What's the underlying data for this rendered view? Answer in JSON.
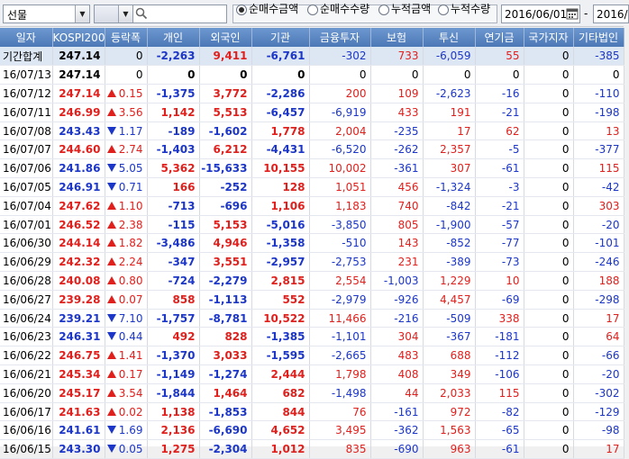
{
  "toolbar": {
    "market_select": "선물",
    "mode_options": [
      {
        "label": "순매수금액",
        "selected": true
      },
      {
        "label": "순매수수량",
        "selected": false
      },
      {
        "label": "누적금액",
        "selected": false
      },
      {
        "label": "누적수량",
        "selected": false
      }
    ],
    "start_date": "2016/06/01",
    "date_separator": "-",
    "end_date": "2016/"
  },
  "columns": [
    "일자",
    "KOSPI200",
    "등락폭",
    "개인",
    "외국인",
    "기관",
    "금융투자",
    "보험",
    "투신",
    "연기금",
    "국가지자",
    "기타법인"
  ],
  "colors": {
    "up": "#e0201d",
    "down": "#1c36c8",
    "header": "#4c78b6",
    "total_row": "#dde6f3"
  },
  "rows": [
    {
      "date": "기간합계",
      "kospi": "247.14",
      "dir": "none",
      "chg": "0",
      "ind": "-2,263",
      "frn": "9,411",
      "inst": "-6,761",
      "fin": "-302",
      "ins": "733",
      "tru": "-6,059",
      "pen": "55",
      "gov": "0",
      "etc": "-385"
    },
    {
      "date": "16/07/13",
      "kospi": "247.14",
      "dir": "none",
      "chg": "0",
      "ind": "0",
      "frn": "0",
      "inst": "0",
      "fin": "0",
      "ins": "0",
      "tru": "0",
      "pen": "0",
      "gov": "0",
      "etc": "0"
    },
    {
      "date": "16/07/12",
      "kospi": "247.14",
      "dir": "up",
      "chg": "0.15",
      "ind": "-1,375",
      "frn": "3,772",
      "inst": "-2,286",
      "fin": "200",
      "ins": "109",
      "tru": "-2,623",
      "pen": "-16",
      "gov": "0",
      "etc": "-110"
    },
    {
      "date": "16/07/11",
      "kospi": "246.99",
      "dir": "up",
      "chg": "3.56",
      "ind": "1,142",
      "frn": "5,513",
      "inst": "-6,457",
      "fin": "-6,919",
      "ins": "433",
      "tru": "191",
      "pen": "-21",
      "gov": "0",
      "etc": "-198"
    },
    {
      "date": "16/07/08",
      "kospi": "243.43",
      "dir": "down",
      "chg": "1.17",
      "ind": "-189",
      "frn": "-1,602",
      "inst": "1,778",
      "fin": "2,004",
      "ins": "-235",
      "tru": "17",
      "pen": "62",
      "gov": "0",
      "etc": "13"
    },
    {
      "date": "16/07/07",
      "kospi": "244.60",
      "dir": "up",
      "chg": "2.74",
      "ind": "-1,403",
      "frn": "6,212",
      "inst": "-4,431",
      "fin": "-6,520",
      "ins": "-262",
      "tru": "2,357",
      "pen": "-5",
      "gov": "0",
      "etc": "-377"
    },
    {
      "date": "16/07/06",
      "kospi": "241.86",
      "dir": "down",
      "chg": "5.05",
      "ind": "5,362",
      "frn": "-15,633",
      "inst": "10,155",
      "fin": "10,002",
      "ins": "-361",
      "tru": "307",
      "pen": "-61",
      "gov": "0",
      "etc": "115"
    },
    {
      "date": "16/07/05",
      "kospi": "246.91",
      "dir": "down",
      "chg": "0.71",
      "ind": "166",
      "frn": "-252",
      "inst": "128",
      "fin": "1,051",
      "ins": "456",
      "tru": "-1,324",
      "pen": "-3",
      "gov": "0",
      "etc": "-42"
    },
    {
      "date": "16/07/04",
      "kospi": "247.62",
      "dir": "up",
      "chg": "1.10",
      "ind": "-713",
      "frn": "-696",
      "inst": "1,106",
      "fin": "1,183",
      "ins": "740",
      "tru": "-842",
      "pen": "-21",
      "gov": "0",
      "etc": "303"
    },
    {
      "date": "16/07/01",
      "kospi": "246.52",
      "dir": "up",
      "chg": "2.38",
      "ind": "-115",
      "frn": "5,153",
      "inst": "-5,016",
      "fin": "-3,850",
      "ins": "805",
      "tru": "-1,900",
      "pen": "-57",
      "gov": "0",
      "etc": "-20"
    },
    {
      "date": "16/06/30",
      "kospi": "244.14",
      "dir": "up",
      "chg": "1.82",
      "ind": "-3,486",
      "frn": "4,946",
      "inst": "-1,358",
      "fin": "-510",
      "ins": "143",
      "tru": "-852",
      "pen": "-77",
      "gov": "0",
      "etc": "-101"
    },
    {
      "date": "16/06/29",
      "kospi": "242.32",
      "dir": "up",
      "chg": "2.24",
      "ind": "-347",
      "frn": "3,551",
      "inst": "-2,957",
      "fin": "-2,753",
      "ins": "231",
      "tru": "-389",
      "pen": "-73",
      "gov": "0",
      "etc": "-246"
    },
    {
      "date": "16/06/28",
      "kospi": "240.08",
      "dir": "up",
      "chg": "0.80",
      "ind": "-724",
      "frn": "-2,279",
      "inst": "2,815",
      "fin": "2,554",
      "ins": "-1,003",
      "tru": "1,229",
      "pen": "10",
      "gov": "0",
      "etc": "188"
    },
    {
      "date": "16/06/27",
      "kospi": "239.28",
      "dir": "up",
      "chg": "0.07",
      "ind": "858",
      "frn": "-1,113",
      "inst": "552",
      "fin": "-2,979",
      "ins": "-926",
      "tru": "4,457",
      "pen": "-69",
      "gov": "0",
      "etc": "-298"
    },
    {
      "date": "16/06/24",
      "kospi": "239.21",
      "dir": "down",
      "chg": "7.10",
      "ind": "-1,757",
      "frn": "-8,781",
      "inst": "10,522",
      "fin": "11,466",
      "ins": "-216",
      "tru": "-509",
      "pen": "338",
      "gov": "0",
      "etc": "17"
    },
    {
      "date": "16/06/23",
      "kospi": "246.31",
      "dir": "down",
      "chg": "0.44",
      "ind": "492",
      "frn": "828",
      "inst": "-1,385",
      "fin": "-1,101",
      "ins": "304",
      "tru": "-367",
      "pen": "-181",
      "gov": "0",
      "etc": "64"
    },
    {
      "date": "16/06/22",
      "kospi": "246.75",
      "dir": "up",
      "chg": "1.41",
      "ind": "-1,370",
      "frn": "3,033",
      "inst": "-1,595",
      "fin": "-2,665",
      "ins": "483",
      "tru": "688",
      "pen": "-112",
      "gov": "0",
      "etc": "-66"
    },
    {
      "date": "16/06/21",
      "kospi": "245.34",
      "dir": "up",
      "chg": "0.17",
      "ind": "-1,149",
      "frn": "-1,274",
      "inst": "2,444",
      "fin": "1,798",
      "ins": "408",
      "tru": "349",
      "pen": "-106",
      "gov": "0",
      "etc": "-20"
    },
    {
      "date": "16/06/20",
      "kospi": "245.17",
      "dir": "up",
      "chg": "3.54",
      "ind": "-1,844",
      "frn": "1,464",
      "inst": "682",
      "fin": "-1,498",
      "ins": "44",
      "tru": "2,033",
      "pen": "115",
      "gov": "0",
      "etc": "-302"
    },
    {
      "date": "16/06/17",
      "kospi": "241.63",
      "dir": "up",
      "chg": "0.02",
      "ind": "1,138",
      "frn": "-1,853",
      "inst": "844",
      "fin": "76",
      "ins": "-161",
      "tru": "972",
      "pen": "-82",
      "gov": "0",
      "etc": "-129"
    },
    {
      "date": "16/06/16",
      "kospi": "241.61",
      "dir": "down",
      "chg": "1.69",
      "ind": "2,136",
      "frn": "-6,690",
      "inst": "4,652",
      "fin": "3,495",
      "ins": "-362",
      "tru": "1,563",
      "pen": "-65",
      "gov": "0",
      "etc": "-98"
    },
    {
      "date": "16/06/15",
      "kospi": "243.30",
      "dir": "down",
      "chg": "0.05",
      "ind": "1,275",
      "frn": "-2,304",
      "inst": "1,012",
      "fin": "835",
      "ins": "-690",
      "tru": "963",
      "pen": "-61",
      "gov": "0",
      "etc": "17"
    }
  ]
}
